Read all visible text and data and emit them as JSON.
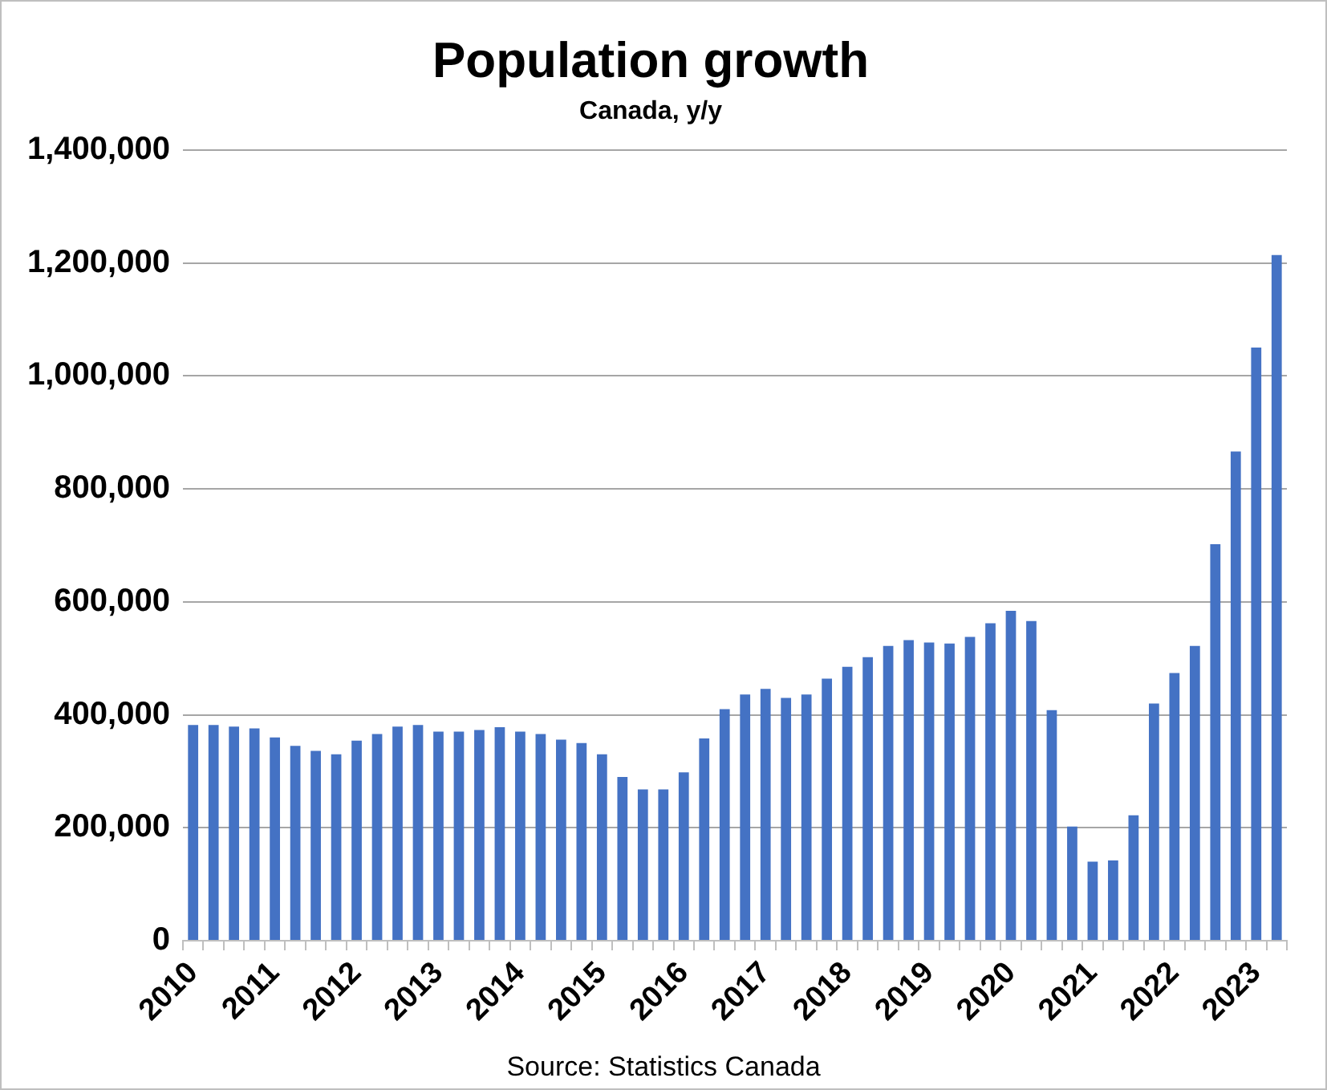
{
  "chart_data": {
    "type": "bar",
    "title": "Population growth",
    "subtitle": "Canada, y/y",
    "categories": [
      "2010",
      null,
      null,
      null,
      "2011",
      null,
      null,
      null,
      "2012",
      null,
      null,
      null,
      "2013",
      null,
      null,
      null,
      "2014",
      null,
      null,
      null,
      "2015",
      null,
      null,
      null,
      "2016",
      null,
      null,
      null,
      "2017",
      null,
      null,
      null,
      "2018",
      null,
      null,
      null,
      "2019",
      null,
      null,
      null,
      "2020",
      null,
      null,
      null,
      "2021",
      null,
      null,
      null,
      "2022",
      null,
      null,
      null,
      "2023",
      null
    ],
    "values": [
      382000,
      382000,
      379000,
      376000,
      360000,
      345000,
      336000,
      330000,
      354000,
      366000,
      379000,
      382000,
      370000,
      370000,
      373000,
      378000,
      370000,
      366000,
      356000,
      350000,
      330000,
      290000,
      268000,
      268000,
      298000,
      358000,
      410000,
      436000,
      446000,
      430000,
      436000,
      464000,
      485000,
      502000,
      522000,
      532000,
      528000,
      526000,
      538000,
      562000,
      584000,
      566000,
      408000,
      202000,
      140000,
      142000,
      222000,
      420000,
      474000,
      522000,
      702000,
      866000,
      1050000,
      1214000
    ],
    "color": "#4472c4",
    "ylim": [
      0,
      1400000
    ],
    "yticks": [
      0,
      {
        "value": 200000,
        "label": "200,000"
      },
      {
        "value": 400000,
        "label": "400,000"
      },
      {
        "value": 600000,
        "label": "600,000"
      },
      {
        "value": 800000,
        "label": "800,000"
      },
      {
        "value": 1000000,
        "label": "1,000,000"
      },
      {
        "value": 1200000,
        "label": "1,200,000"
      },
      {
        "value": 1400000,
        "label": "1,400,000"
      }
    ],
    "grid": "y",
    "legend": false,
    "annotations": [
      "Source: Statistics Canada"
    ]
  }
}
